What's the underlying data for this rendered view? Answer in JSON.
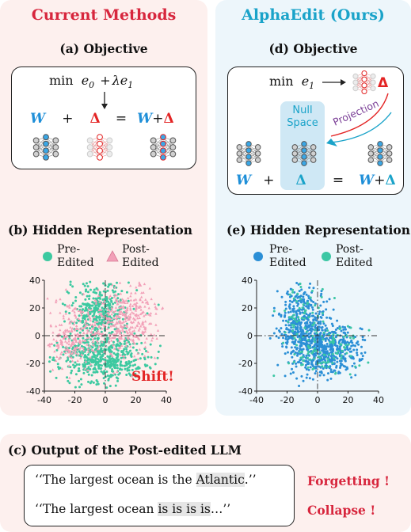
{
  "left": {
    "heading": "Current Methods",
    "objective_label": "(a) Objective",
    "objective": {
      "min": "min",
      "e0": "e",
      "e0_sub": "0",
      "plus": "+",
      "lambda_e1": "λe",
      "e1_sub": "1"
    },
    "equation": {
      "W": "W",
      "plus": "+",
      "delta": "Δ",
      "equals": "=",
      "result_W": "W",
      "result_plus": "+",
      "result_delta": "Δ"
    },
    "hidden_label": "(b) Hidden Representation",
    "legend": {
      "pre_line1": "Pre-",
      "pre_line2": "Edited",
      "post_line1": "Post-",
      "post_line2": "Edited"
    },
    "shift_label": "Shift!"
  },
  "right": {
    "heading": "AlphaEdit (Ours)",
    "objective_label": "(d) Objective",
    "objective": {
      "min": "min",
      "e1": "e",
      "e1_sub": "1"
    },
    "null_space_line1": "Null",
    "null_space_line2": "Space",
    "projection_label": "Projection",
    "equation": {
      "W": "W",
      "plus": "+",
      "delta": "Δ",
      "equals": "=",
      "result_W": "W",
      "result_plus": "+",
      "result_delta": "Δ"
    },
    "hidden_label": "(e) Hidden Representation",
    "legend": {
      "pre_line1": "Pre-",
      "pre_line2": "Edited",
      "post_line1": "Post-",
      "post_line2": "Edited"
    }
  },
  "bottom": {
    "label": "(c) Output of the Post-edited LLM",
    "line1": {
      "pre": "‘‘The largest ocean is the ",
      "highlight": "Atlantic",
      "post": ".’’"
    },
    "line2": {
      "pre": "‘‘The largest ocean ",
      "highlight": "is is is is",
      "post": "…’’"
    },
    "tag1": "Forgetting !",
    "tag2": "Collapse !"
  },
  "colors": {
    "current_red": "#d7263d",
    "alpha_blue": "#1aa3c9",
    "pre_edited_green": "#3cc9a0",
    "post_edited_pink": "#f2a0b8",
    "alpha_pre_blue": "#2b8fd6",
    "alpha_post_teal": "#3bc7a4"
  },
  "chart_data": [
    {
      "type": "scatter",
      "panel": "(b) Hidden Representation",
      "xlim": [
        -40,
        40
      ],
      "ylim": [
        -40,
        40
      ],
      "xticks": [
        -40,
        -20,
        0,
        20,
        40
      ],
      "yticks": [
        -40,
        -20,
        0,
        20,
        40
      ],
      "xtick_labels": [
        "-40",
        "-20",
        "0",
        "20",
        "40"
      ],
      "ytick_labels": [
        "-40",
        "-20",
        "0",
        "20",
        "40"
      ],
      "series": [
        {
          "name": "Pre-Edited",
          "color": "#3cc9a0",
          "marker": "circle",
          "clusters": [
            {
              "center": [
                -4,
                18
              ],
              "spread": [
                10,
                11
              ],
              "count": 380
            },
            {
              "center": [
                -2,
                -16
              ],
              "spread": [
                14,
                9
              ],
              "count": 520
            }
          ]
        },
        {
          "name": "Post-Edited",
          "color": "#f2a0b8",
          "marker": "triangle",
          "clusters": [
            {
              "center": [
                -20,
                0
              ],
              "spread": [
                9,
                11
              ],
              "count": 240
            },
            {
              "center": [
                14,
                12
              ],
              "spread": [
                10,
                13
              ],
              "count": 360
            }
          ]
        }
      ]
    },
    {
      "type": "scatter",
      "panel": "(e) Hidden Representation",
      "xlim": [
        -40,
        40
      ],
      "ylim": [
        -40,
        40
      ],
      "xticks": [
        -40,
        -20,
        0,
        20,
        40
      ],
      "yticks": [
        -40,
        -20,
        0,
        20,
        40
      ],
      "xtick_labels": [
        "-40",
        "-20",
        "0",
        "20",
        "40"
      ],
      "ytick_labels": [
        "-40",
        "-20",
        "0",
        "20",
        "40"
      ],
      "series": [
        {
          "name": "Pre-Edited",
          "color": "#2b8fd6",
          "marker": "circle",
          "clusters": [
            {
              "center": [
                -10,
                10
              ],
              "spread": [
                7,
                14
              ],
              "count": 380
            },
            {
              "center": [
                4,
                -10
              ],
              "spread": [
                11,
                10
              ],
              "count": 520
            }
          ]
        },
        {
          "name": "Post-Edited",
          "color": "#3bc7a4",
          "marker": "circle",
          "clusters": [
            {
              "center": [
                -10,
                10
              ],
              "spread": [
                7,
                14
              ],
              "count": 70
            },
            {
              "center": [
                4,
                -10
              ],
              "spread": [
                11,
                10
              ],
              "count": 90
            }
          ]
        }
      ]
    }
  ]
}
